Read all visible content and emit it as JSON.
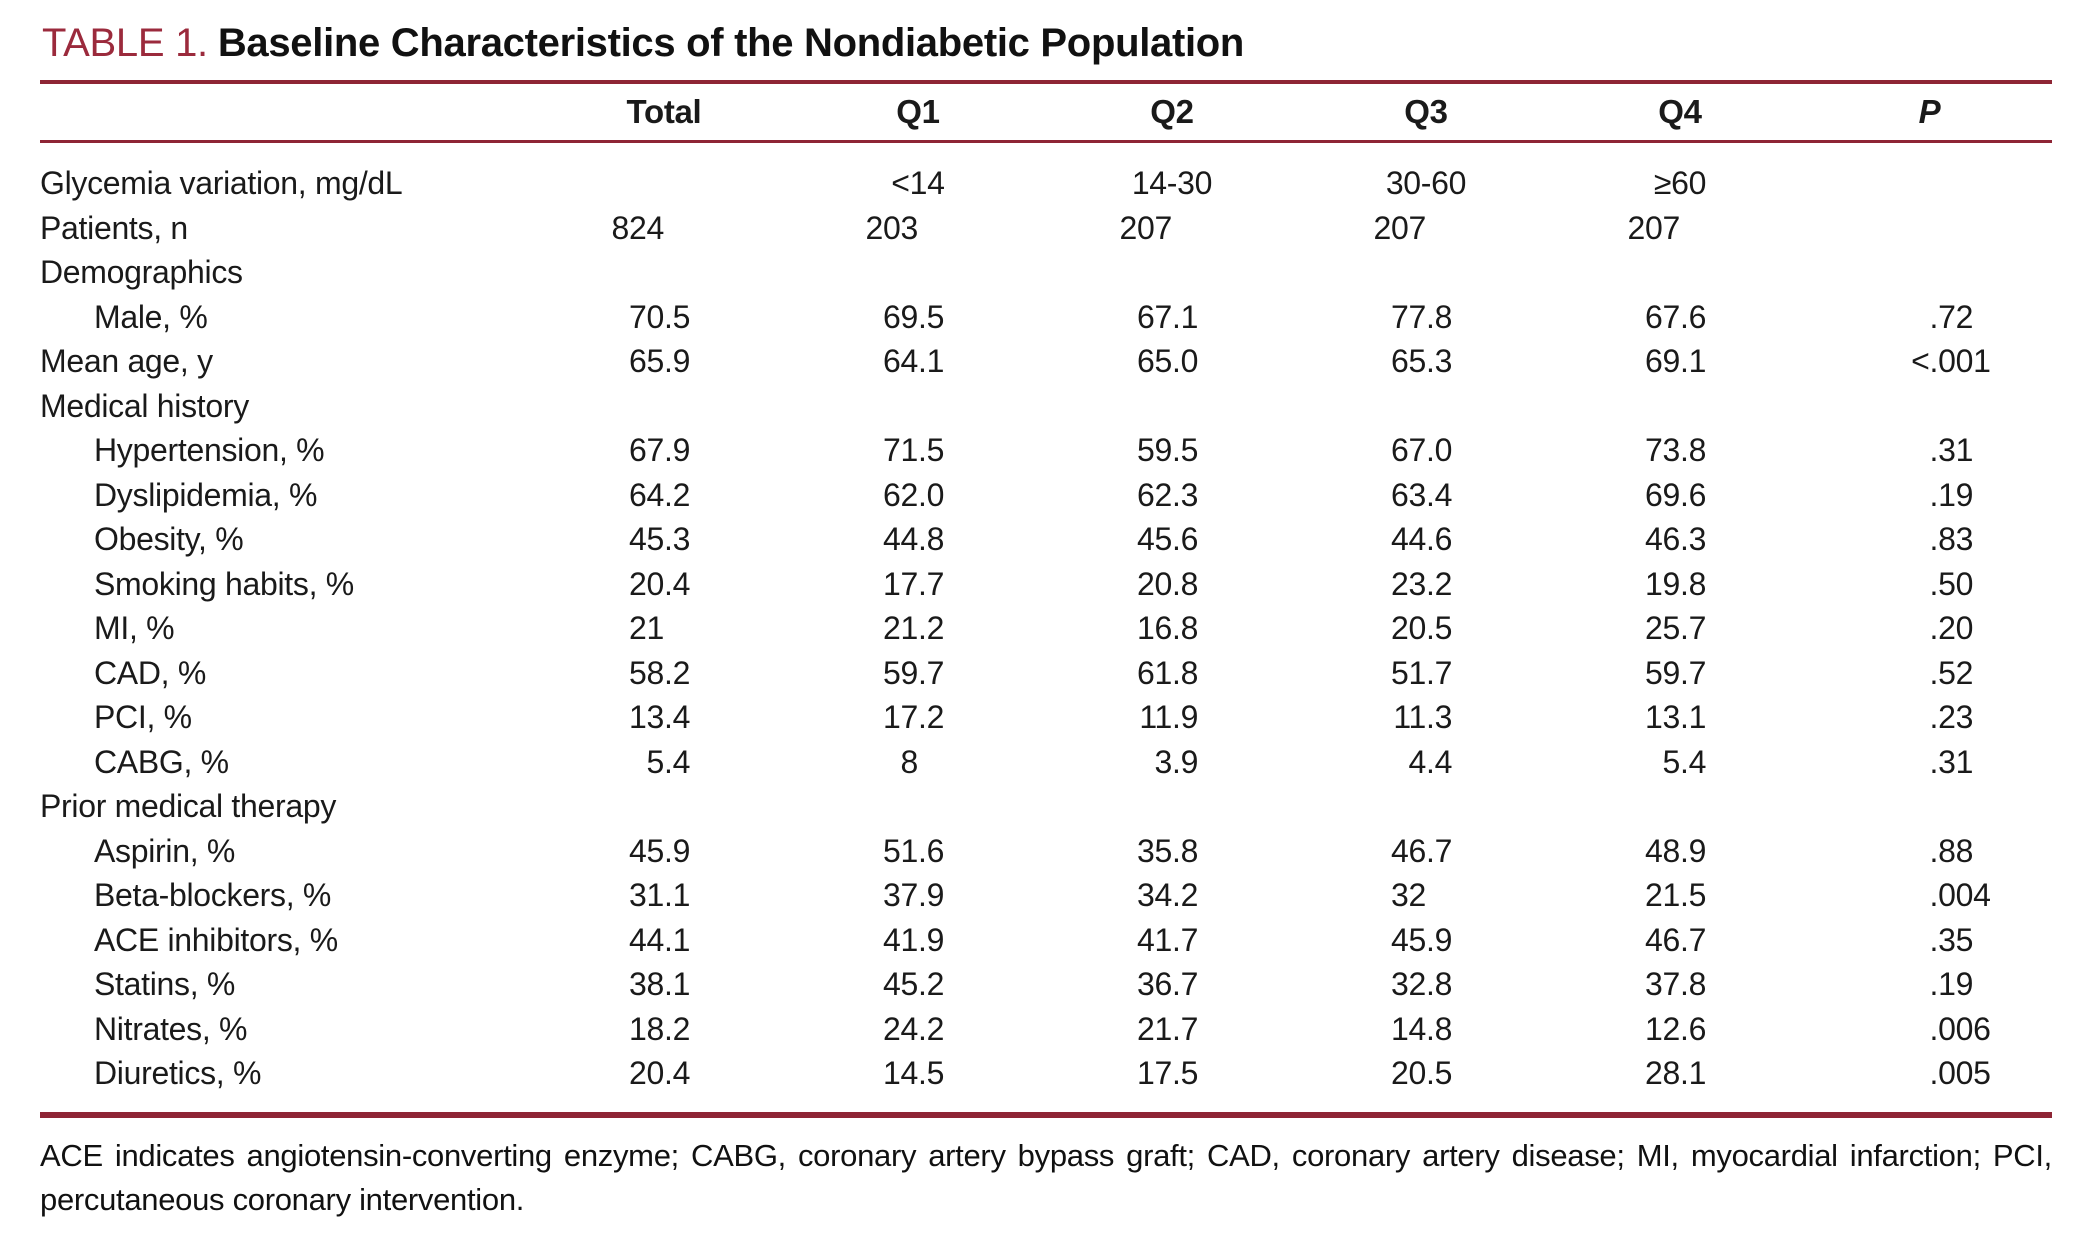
{
  "title": {
    "label": "TABLE 1.",
    "text": "Baseline Characteristics of the Nondiabetic Population"
  },
  "colors": {
    "accent_maroon": "#9b2a3c",
    "rule_maroon": "#8e2535",
    "text": "#1a1a1a"
  },
  "table": {
    "headers": [
      "Total",
      "Q1",
      "Q2",
      "Q3",
      "Q4",
      "P"
    ],
    "rows": [
      {
        "type": "data",
        "label": "Glycemia variation, mg/dL",
        "indent": false,
        "align": "center",
        "values": [
          "",
          "<14",
          "14-30",
          "30-60",
          "≥60",
          ""
        ]
      },
      {
        "type": "data",
        "label": "Patients, n",
        "indent": false,
        "values": [
          "824",
          "203",
          "207",
          "207",
          "207",
          ""
        ]
      },
      {
        "type": "section",
        "label": "Demographics"
      },
      {
        "type": "data",
        "label": "Male, %",
        "indent": true,
        "values": [
          "70.5",
          "69.5",
          "67.1",
          "77.8",
          "67.6",
          ".72"
        ]
      },
      {
        "type": "data",
        "label": "Mean age, y",
        "indent": false,
        "values": [
          "65.9",
          "64.1",
          "65.0",
          "65.3",
          "69.1",
          "<.001"
        ]
      },
      {
        "type": "section",
        "label": "Medical history"
      },
      {
        "type": "data",
        "label": "Hypertension, %",
        "indent": true,
        "values": [
          "67.9",
          "71.5",
          "59.5",
          "67.0",
          "73.8",
          ".31"
        ]
      },
      {
        "type": "data",
        "label": "Dyslipidemia, %",
        "indent": true,
        "values": [
          "64.2",
          "62.0",
          "62.3",
          "63.4",
          "69.6",
          ".19"
        ]
      },
      {
        "type": "data",
        "label": "Obesity, %",
        "indent": true,
        "values": [
          "45.3",
          "44.8",
          "45.6",
          "44.6",
          "46.3",
          ".83"
        ]
      },
      {
        "type": "data",
        "label": "Smoking habits, %",
        "indent": true,
        "values": [
          "20.4",
          "17.7",
          "20.8",
          "23.2",
          "19.8",
          ".50"
        ]
      },
      {
        "type": "data",
        "label": "MI, %",
        "indent": true,
        "values": [
          "21",
          "21.2",
          "16.8",
          "20.5",
          "25.7",
          ".20"
        ]
      },
      {
        "type": "data",
        "label": "CAD, %",
        "indent": true,
        "values": [
          "58.2",
          "59.7",
          "61.8",
          "51.7",
          "59.7",
          ".52"
        ]
      },
      {
        "type": "data",
        "label": "PCI, %",
        "indent": true,
        "values": [
          "13.4",
          "17.2",
          "11.9",
          "11.3",
          "13.1",
          ".23"
        ]
      },
      {
        "type": "data",
        "label": "CABG, %",
        "indent": true,
        "values": [
          "5.4",
          "8",
          "3.9",
          "4.4",
          "5.4",
          ".31"
        ]
      },
      {
        "type": "section",
        "label": "Prior medical therapy"
      },
      {
        "type": "data",
        "label": "Aspirin, %",
        "indent": true,
        "values": [
          "45.9",
          "51.6",
          "35.8",
          "46.7",
          "48.9",
          ".88"
        ]
      },
      {
        "type": "data",
        "label": "Beta-blockers, %",
        "indent": true,
        "values": [
          "31.1",
          "37.9",
          "34.2",
          "32",
          "21.5",
          ".004"
        ]
      },
      {
        "type": "data",
        "label": "ACE inhibitors, %",
        "indent": true,
        "values": [
          "44.1",
          "41.9",
          "41.7",
          "45.9",
          "46.7",
          ".35"
        ]
      },
      {
        "type": "data",
        "label": "Statins, %",
        "indent": true,
        "values": [
          "38.1",
          "45.2",
          "36.7",
          "32.8",
          "37.8",
          ".19"
        ]
      },
      {
        "type": "data",
        "label": "Nitrates, %",
        "indent": true,
        "values": [
          "18.2",
          "24.2",
          "21.7",
          "14.8",
          "12.6",
          ".006"
        ]
      },
      {
        "type": "data",
        "label": "Diuretics, %",
        "indent": true,
        "values": [
          "20.4",
          "14.5",
          "17.5",
          "20.5",
          "28.1",
          ".005"
        ]
      }
    ]
  },
  "footnote": "ACE indicates angiotensin-converting enzyme; CABG, coronary artery bypass graft; CAD, coronary artery disease; MI, myocardial infarction; PCI, percutaneous coronary intervention."
}
